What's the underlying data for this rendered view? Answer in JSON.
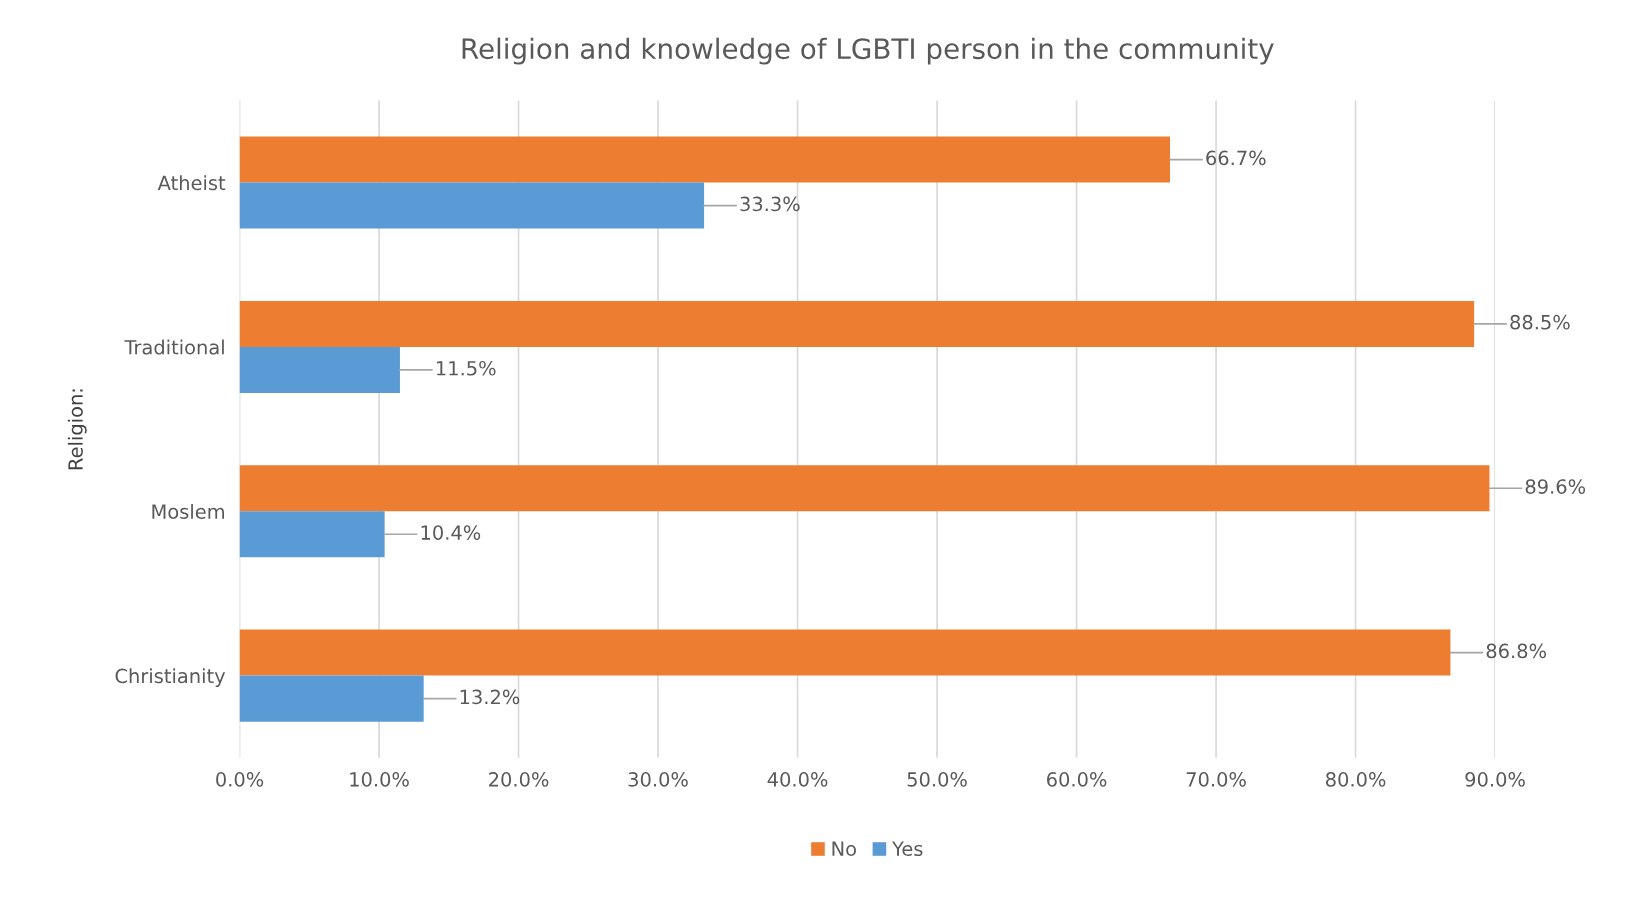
{
  "chart_data": {
    "type": "bar",
    "orientation": "horizontal",
    "title": "Religion and knowledge of LGBTI person in the community",
    "ylabel": "Religion:",
    "categories": [
      "Atheist",
      "Traditional",
      "Moslem",
      "Christianity"
    ],
    "series": [
      {
        "name": "No",
        "color": "#ed7d31",
        "values": [
          66.7,
          88.5,
          89.6,
          86.8
        ],
        "value_labels": [
          "66.7%",
          "88.5%",
          "89.6%",
          "86.8%"
        ]
      },
      {
        "name": "Yes",
        "color": "#5b9bd5",
        "values": [
          33.3,
          11.5,
          10.4,
          13.2
        ],
        "value_labels": [
          "33.3%",
          "11.5%",
          "10.4%",
          "13.2%"
        ]
      }
    ],
    "xlim": [
      0,
      90
    ],
    "xticks": [
      {
        "value": 0,
        "label": "0.0%"
      },
      {
        "value": 10,
        "label": "10.0%"
      },
      {
        "value": 20,
        "label": "20.0%"
      },
      {
        "value": 30,
        "label": "30.0%"
      },
      {
        "value": 40,
        "label": "40.0%"
      },
      {
        "value": 50,
        "label": "50.0%"
      },
      {
        "value": 60,
        "label": "60.0%"
      },
      {
        "value": 70,
        "label": "70.0%"
      },
      {
        "value": 80,
        "label": "80.0%"
      },
      {
        "value": 90,
        "label": "90.0%"
      }
    ],
    "grid": "x",
    "legend": "bottom"
  }
}
